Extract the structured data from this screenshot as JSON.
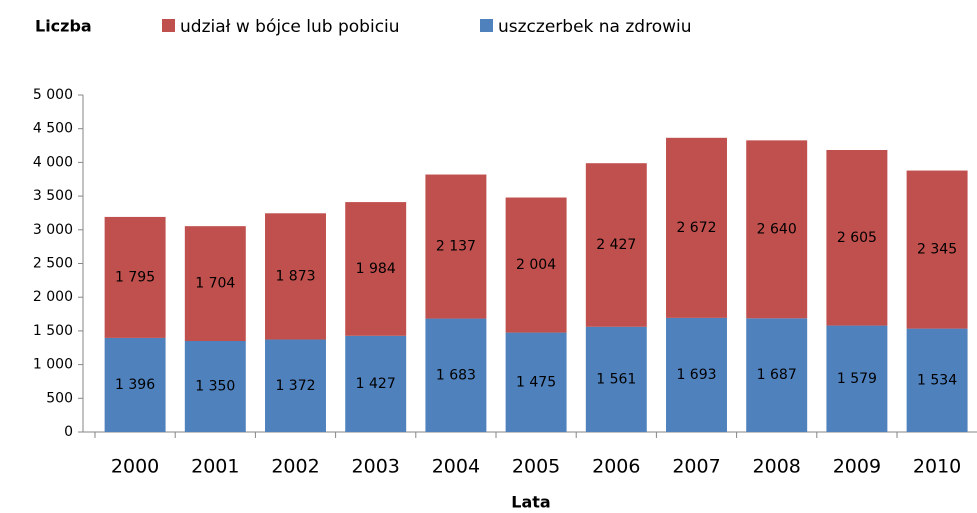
{
  "chart_data": {
    "type": "stacked_bar",
    "y_axis_title": "Liczba",
    "x_axis_title": "Lata",
    "categories": [
      "2000",
      "2001",
      "2002",
      "2003",
      "2004",
      "2005",
      "2006",
      "2007",
      "2008",
      "2009",
      "2010"
    ],
    "series": [
      {
        "name": "uszczerbek na zdrowiu",
        "color": "#4f81bd",
        "values": [
          1396,
          1350,
          1372,
          1427,
          1683,
          1475,
          1561,
          1693,
          1687,
          1579,
          1534
        ],
        "value_labels": [
          "1 396",
          "1 350",
          "1 372",
          "1 427",
          "1 683",
          "1 475",
          "1 561",
          "1 693",
          "1 687",
          "1 579",
          "1 534"
        ]
      },
      {
        "name": "udział w bójce lub pobiciu",
        "color": "#c0504d",
        "values": [
          1795,
          1704,
          1873,
          1984,
          2137,
          2004,
          2427,
          2672,
          2640,
          2605,
          2345
        ],
        "value_labels": [
          "1 795",
          "1 704",
          "1 873",
          "1 984",
          "2 137",
          "2 004",
          "2 427",
          "2 672",
          "2 640",
          "2 605",
          "2 345"
        ]
      }
    ],
    "legend_order": [
      1,
      0
    ],
    "ylim": [
      0,
      5000
    ],
    "yticks": [
      0,
      500,
      {
        "value": 1000,
        "label": "1 000"
      },
      {
        "value": 1500,
        "label": "1 500"
      },
      {
        "value": 2000,
        "label": "2 000"
      },
      {
        "value": 2500,
        "label": "2 500"
      },
      {
        "value": 3000,
        "label": "3 000"
      },
      {
        "value": 3500,
        "label": "3 500"
      },
      {
        "value": 4000,
        "label": "4 000"
      },
      {
        "value": 4500,
        "label": "4 500"
      },
      {
        "value": 5000,
        "label": "5 000"
      }
    ]
  }
}
